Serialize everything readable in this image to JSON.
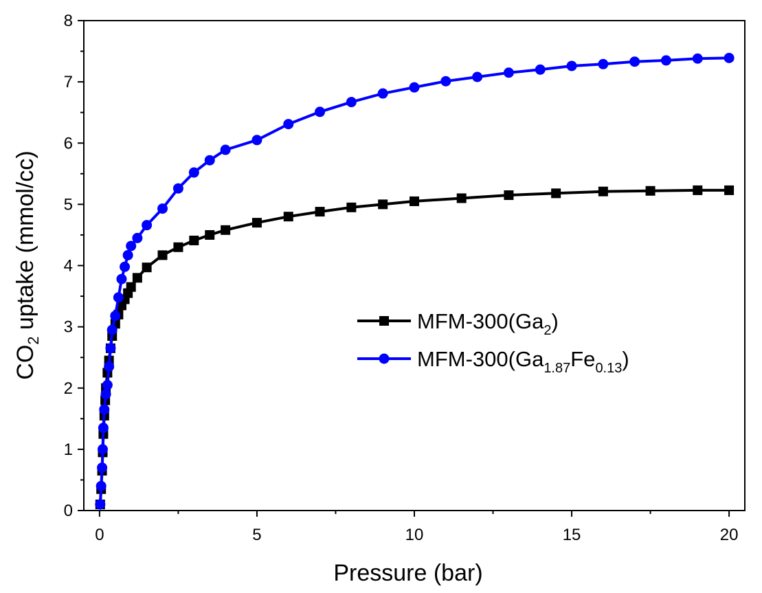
{
  "chart_data": {
    "type": "line",
    "xlabel": "Pressure (bar)",
    "ylabel": {
      "prefix": "CO",
      "sub": "2",
      "suffix": " uptake (mmol/cc)"
    },
    "xlim": [
      -0.5,
      20.5
    ],
    "ylim": [
      0,
      8
    ],
    "xticks": [
      0,
      5,
      10,
      15,
      20
    ],
    "yticks": [
      0,
      1,
      2,
      3,
      4,
      5,
      6,
      7,
      8
    ],
    "grid": false,
    "legend_position": "center-right",
    "series": [
      {
        "name_parts": [
          {
            "t": "MFM-300(Ga"
          },
          {
            "t": "2",
            "sub": true
          },
          {
            "t": ")"
          }
        ],
        "color": "#000000",
        "marker": "square",
        "x": [
          0.02,
          0.05,
          0.08,
          0.1,
          0.12,
          0.15,
          0.18,
          0.2,
          0.25,
          0.3,
          0.35,
          0.4,
          0.5,
          0.6,
          0.7,
          0.8,
          0.9,
          1.0,
          1.2,
          1.5,
          2.0,
          2.5,
          3.0,
          3.5,
          4.0,
          5.0,
          6.0,
          7.0,
          8.0,
          9.0,
          10.0,
          11.5,
          13.0,
          14.5,
          16.0,
          17.5,
          19.0,
          20.0
        ],
        "y": [
          0.1,
          0.35,
          0.65,
          0.95,
          1.25,
          1.55,
          1.8,
          2.0,
          2.25,
          2.45,
          2.65,
          2.85,
          3.05,
          3.2,
          3.35,
          3.45,
          3.55,
          3.65,
          3.8,
          3.97,
          4.17,
          4.3,
          4.41,
          4.5,
          4.58,
          4.7,
          4.8,
          4.88,
          4.95,
          5.0,
          5.05,
          5.1,
          5.15,
          5.18,
          5.21,
          5.22,
          5.23,
          5.23
        ]
      },
      {
        "name_parts": [
          {
            "t": "MFM-300(Ga"
          },
          {
            "t": "1.87",
            "sub": true
          },
          {
            "t": "Fe"
          },
          {
            "t": "0.13",
            "sub": true
          },
          {
            "t": ")"
          }
        ],
        "color": "#0000ff",
        "marker": "circle",
        "x": [
          0.02,
          0.05,
          0.08,
          0.1,
          0.12,
          0.15,
          0.2,
          0.25,
          0.3,
          0.35,
          0.4,
          0.5,
          0.6,
          0.7,
          0.8,
          0.9,
          1.0,
          1.2,
          1.5,
          2.0,
          2.5,
          3.0,
          3.5,
          4.0,
          5.0,
          6.0,
          7.0,
          8.0,
          9.0,
          10.0,
          11.0,
          12.0,
          13.0,
          14.0,
          15.0,
          16.0,
          17.0,
          18.0,
          19.0,
          20.0
        ],
        "y": [
          0.1,
          0.4,
          0.7,
          1.0,
          1.35,
          1.65,
          1.9,
          2.05,
          2.35,
          2.65,
          2.95,
          3.18,
          3.48,
          3.78,
          3.98,
          4.17,
          4.32,
          4.45,
          4.66,
          4.93,
          5.26,
          5.52,
          5.72,
          5.89,
          6.05,
          6.31,
          6.51,
          6.67,
          6.81,
          6.91,
          7.01,
          7.08,
          7.15,
          7.2,
          7.26,
          7.29,
          7.33,
          7.35,
          7.38,
          7.39
        ]
      }
    ]
  }
}
